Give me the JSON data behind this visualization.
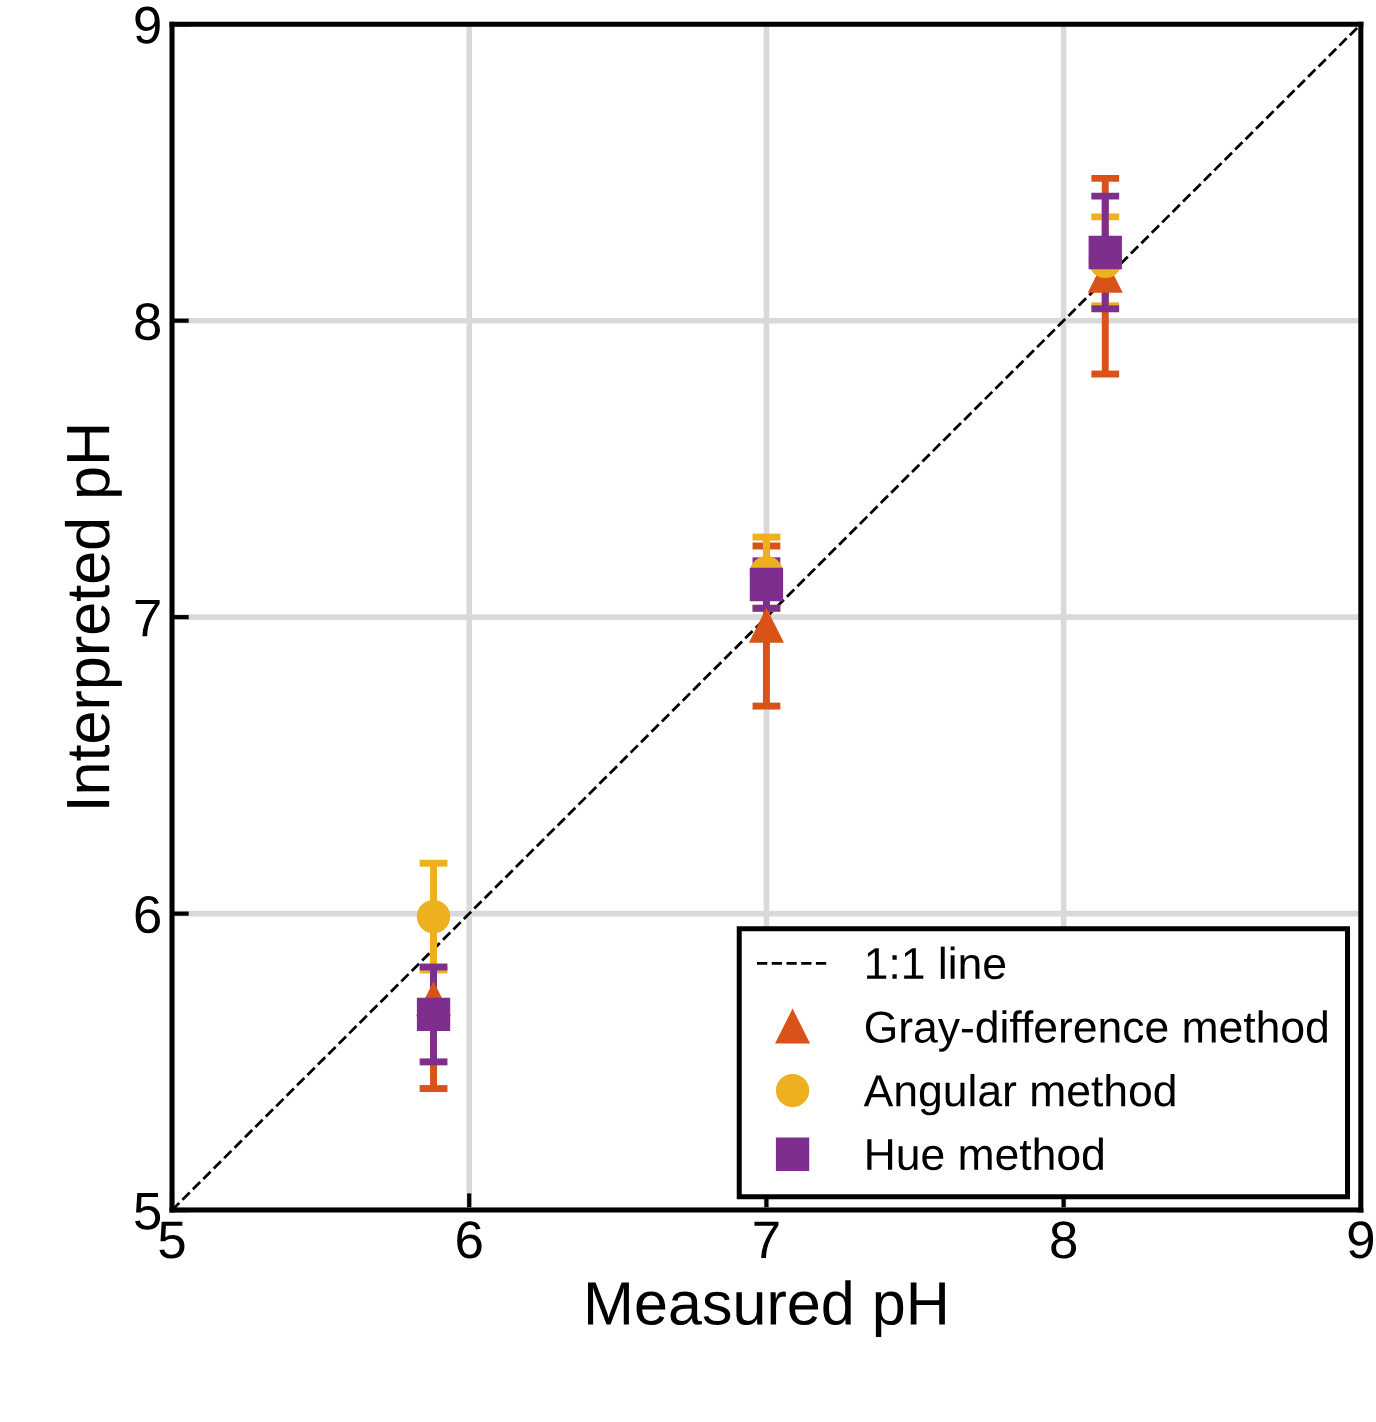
{
  "chart_data": {
    "type": "scatter",
    "xlabel": "Measured pH",
    "ylabel": "Interpreted pH",
    "xlim": [
      5,
      9
    ],
    "ylim": [
      5,
      9
    ],
    "xticks": [
      5,
      6,
      7,
      8,
      9
    ],
    "yticks": [
      5,
      6,
      7,
      8,
      9
    ],
    "grid": true,
    "legend": "bottom right",
    "series": [
      {
        "name": "1:1 line",
        "type": "line",
        "color": "#000000",
        "x": [
          5,
          9
        ],
        "values": [
          5,
          9
        ],
        "line_style": "dashed",
        "marker": "none"
      },
      {
        "name": "Gray-difference method",
        "color": "#d95319",
        "marker": "triangle",
        "x": [
          5.88,
          7.0,
          8.14
        ],
        "values": [
          5.71,
          6.97,
          8.15
        ],
        "errors": [
          0.3,
          0.27,
          0.33
        ]
      },
      {
        "name": "Angular method",
        "color": "#edb120",
        "marker": "circle",
        "x": [
          5.88,
          7.0,
          8.14
        ],
        "values": [
          5.99,
          7.15,
          8.2
        ],
        "errors": [
          0.18,
          0.12,
          0.15
        ]
      },
      {
        "name": "Hue method",
        "color": "#7e2f8e",
        "marker": "square",
        "x": [
          5.88,
          7.0,
          8.14
        ],
        "values": [
          5.66,
          7.11,
          8.23
        ],
        "errors": [
          0.16,
          0.08,
          0.19
        ]
      }
    ]
  }
}
